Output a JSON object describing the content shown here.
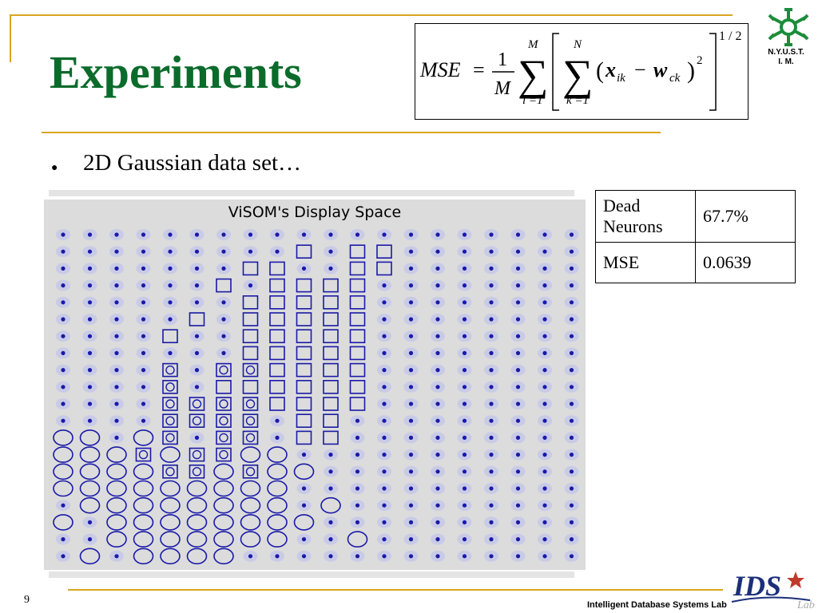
{
  "slide": {
    "title": "Experiments",
    "bullet": "2D Gaussian data set…",
    "page_number": "9",
    "footer": "Intelligent Database Systems Lab",
    "logo_text_line1": "N.Y.U.S.T.",
    "logo_text_line2": "I. M."
  },
  "formula": {
    "lhs": "MSE",
    "numerator": "1",
    "denominator": "M",
    "outer_sum_top": "M",
    "outer_sum_bottom": "i =1",
    "inner_sum_top": "N",
    "inner_sum_bottom": "k =1",
    "x_term": "x",
    "x_sub": "ik",
    "w_term": "w",
    "w_sub": "ck",
    "square": "2",
    "root": "1 / 2"
  },
  "figure": {
    "title": "ViSOM's Display Space",
    "grid_cols": 20,
    "grid_rows": 20,
    "markers": {
      "square": [
        "1,9",
        "2,7",
        "3,6",
        "2,8",
        "3,8",
        "3,9",
        "4,7",
        "4,8",
        "4,9",
        "5,5",
        "5,7",
        "5,8",
        "5,9",
        "5,10",
        "6,4",
        "6,7",
        "6,8",
        "6,9",
        "6,10",
        "7,7",
        "7,8",
        "7,9",
        "7,10",
        "8,7",
        "8,8",
        "8,9",
        "8,10",
        "8,11",
        "9,6",
        "9,7",
        "9,8",
        "9,9",
        "9,10",
        "9,11",
        "10,6",
        "10,8",
        "10,9",
        "10,10",
        "10,11",
        "11,9",
        "11,10",
        "12,9",
        "12,10",
        "2,11",
        "4,11",
        "5,11",
        "6,11",
        "7,11",
        "3,10",
        "4,10",
        "3,11",
        "1,11",
        "1,12",
        "2,12"
      ],
      "inner_square": [
        "8,4",
        "8,6",
        "8,7",
        "9,4",
        "10,4",
        "10,5",
        "10,6",
        "10,7",
        "11,4",
        "11,5",
        "11,6",
        "11,7",
        "12,4",
        "12,6",
        "12,7",
        "13,3",
        "13,5",
        "13,6",
        "14,4",
        "14,7",
        "14,5"
      ],
      "circle": [
        "12,0",
        "12,1",
        "12,3",
        "13,0",
        "13,1",
        "13,2",
        "13,4",
        "13,7",
        "13,8",
        "14,0",
        "14,1",
        "14,2",
        "14,3",
        "14,6",
        "14,8",
        "14,9",
        "15,0",
        "15,1",
        "15,2",
        "15,3",
        "15,4",
        "15,5",
        "15,6",
        "15,7",
        "15,8",
        "16,1",
        "16,2",
        "16,3",
        "16,4",
        "16,5",
        "16,6",
        "16,7",
        "16,8",
        "16,10",
        "17,0",
        "17,2",
        "17,3",
        "17,4",
        "17,5",
        "17,6",
        "17,7",
        "17,8",
        "17,9",
        "18,2",
        "18,3",
        "18,4",
        "18,5",
        "18,6",
        "18,7",
        "18,8",
        "18,11",
        "19,1",
        "19,3",
        "19,4",
        "19,5",
        "19,6"
      ]
    }
  },
  "stats_table": {
    "rows": [
      {
        "label": "Dead Neurons",
        "value": "67.7%"
      },
      {
        "label": "MSE",
        "value": "0.0639"
      }
    ]
  },
  "colors": {
    "title": "#0b6b2b",
    "rule": "#d9a621",
    "marker": "#1a1aa8",
    "halo": "#c9cbe6",
    "plot_bg": "#dcdcdc"
  }
}
